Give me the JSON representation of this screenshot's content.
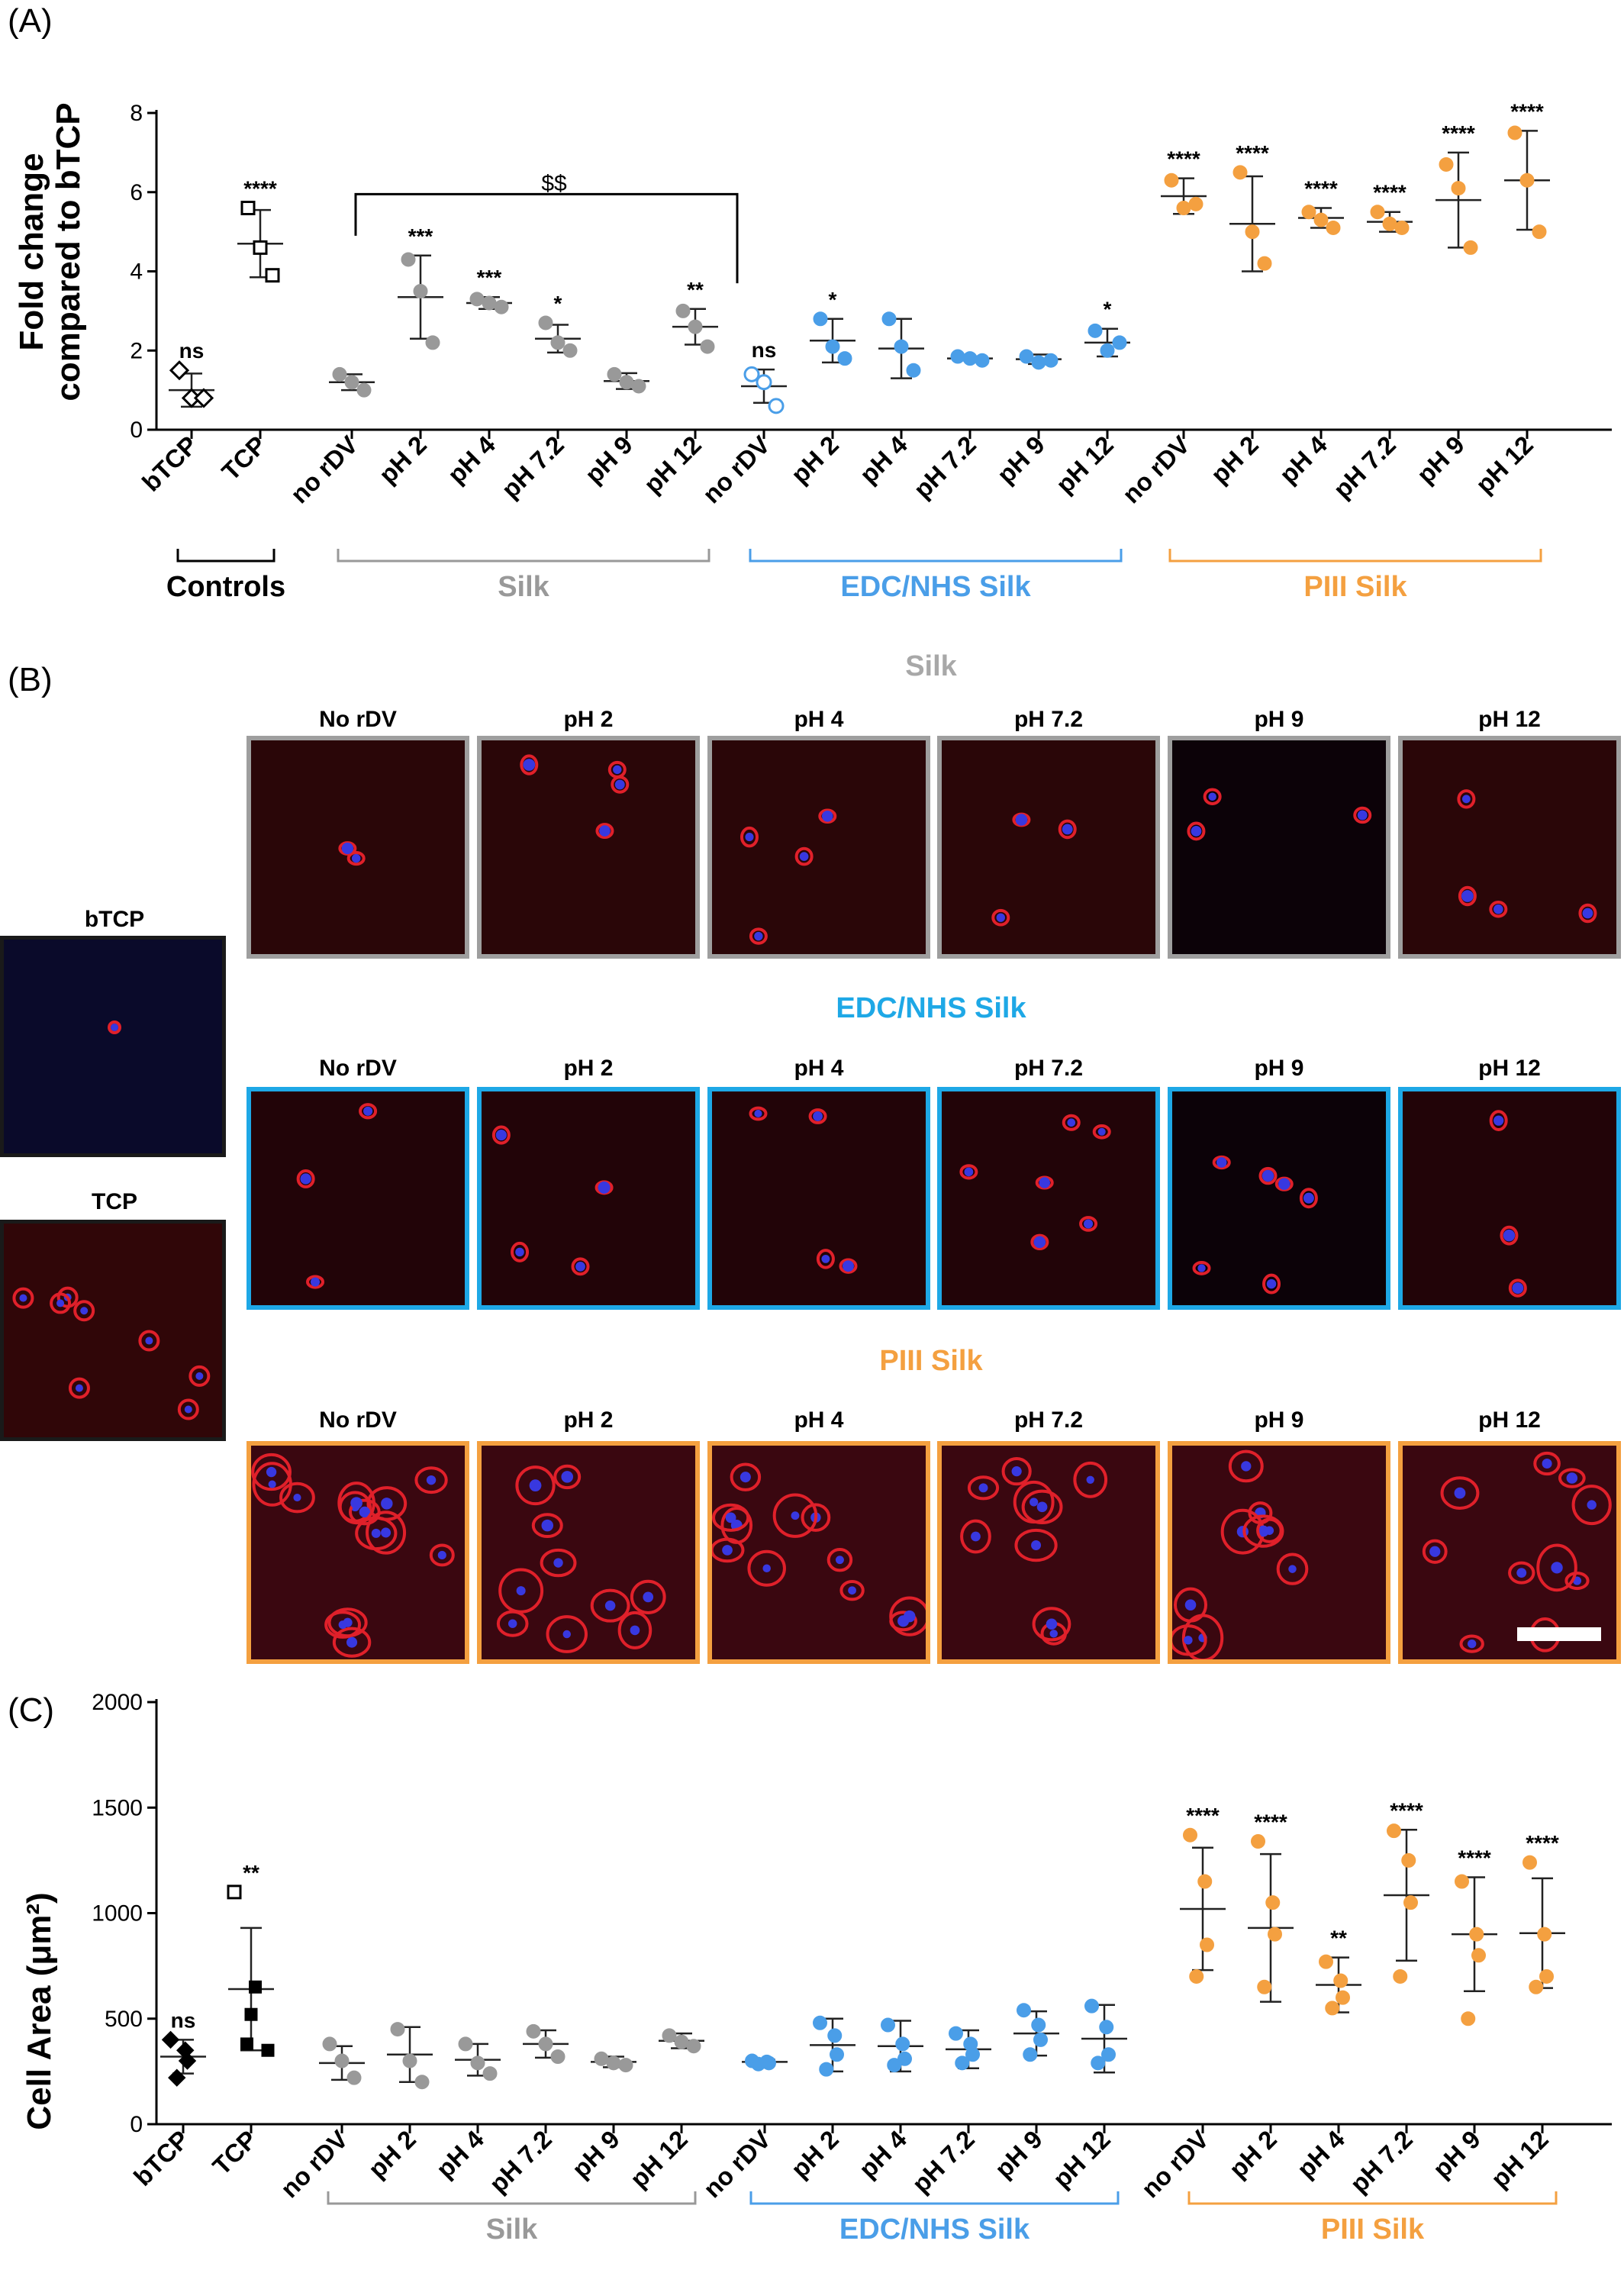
{
  "panel_a": {
    "letter": "(A)",
    "bracket_label": "$$",
    "chart_data": {
      "type": "scatter",
      "ylabel_line1": "Fold change",
      "ylabel_line2": "compared to bTCP",
      "ylim": [
        0,
        8
      ],
      "yticks": [
        0,
        2,
        4,
        6,
        8
      ],
      "categories": [
        "bTCP",
        "TCP",
        "no rDV",
        "pH 2",
        "pH 4",
        "pH 7.2",
        "pH 9",
        "pH 12",
        "no rDV",
        "pH 2",
        "pH 4",
        "pH 7.2",
        "pH 9",
        "pH 12",
        "no rDV",
        "pH 2",
        "pH 4",
        "pH 7.2",
        "pH 9",
        "pH 12"
      ],
      "groups": [
        {
          "name": "Controls",
          "color": "#000000",
          "members": [
            0,
            1
          ]
        },
        {
          "name": "Silk",
          "color": "#999999",
          "members": [
            2,
            3,
            4,
            5,
            6,
            7
          ]
        },
        {
          "name": "EDC/NHS Silk",
          "color": "#4a9ee8",
          "members": [
            8,
            9,
            10,
            11,
            12,
            13
          ]
        },
        {
          "name": "PIII Silk",
          "color": "#f4a040",
          "members": [
            14,
            15,
            16,
            17,
            18,
            19
          ]
        }
      ],
      "series": [
        {
          "category": "bTCP",
          "points": [
            1.5,
            0.8,
            0.8
          ],
          "mean": 1.0,
          "sd": 0.42,
          "sig": "ns",
          "marker": "diamond-open",
          "color": "#000000"
        },
        {
          "category": "TCP",
          "points": [
            5.6,
            4.6,
            3.9
          ],
          "mean": 4.7,
          "sd": 0.85,
          "sig": "****",
          "marker": "square-open",
          "color": "#000000"
        },
        {
          "category": "no rDV",
          "points": [
            1.4,
            1.2,
            1.0
          ],
          "mean": 1.2,
          "sd": 0.2,
          "sig": "",
          "marker": "circle",
          "color": "#999999"
        },
        {
          "category": "pH 2",
          "points": [
            4.3,
            3.5,
            2.2
          ],
          "mean": 3.35,
          "sd": 1.05,
          "sig": "***",
          "marker": "circle",
          "color": "#999999"
        },
        {
          "category": "pH 4",
          "points": [
            3.3,
            3.2,
            3.1
          ],
          "mean": 3.2,
          "sd": 0.15,
          "sig": "***",
          "marker": "circle",
          "color": "#999999"
        },
        {
          "category": "pH 7.2",
          "points": [
            2.7,
            2.2,
            2.0
          ],
          "mean": 2.3,
          "sd": 0.35,
          "sig": "*",
          "marker": "circle",
          "color": "#999999"
        },
        {
          "category": "pH 9",
          "points": [
            1.4,
            1.2,
            1.1
          ],
          "mean": 1.23,
          "sd": 0.2,
          "sig": "",
          "marker": "circle",
          "color": "#999999"
        },
        {
          "category": "pH 12",
          "points": [
            3.0,
            2.6,
            2.1
          ],
          "mean": 2.6,
          "sd": 0.45,
          "sig": "**",
          "marker": "circle",
          "color": "#999999"
        },
        {
          "category": "no rDV",
          "points": [
            1.4,
            1.2,
            0.6
          ],
          "mean": 1.1,
          "sd": 0.42,
          "sig": "ns",
          "marker": "circle-open",
          "color": "#4a9ee8"
        },
        {
          "category": "pH 2",
          "points": [
            2.8,
            2.1,
            1.8
          ],
          "mean": 2.25,
          "sd": 0.55,
          "sig": "*",
          "marker": "circle",
          "color": "#4a9ee8"
        },
        {
          "category": "pH 4",
          "points": [
            2.8,
            2.1,
            1.5
          ],
          "mean": 2.05,
          "sd": 0.75,
          "sig": "",
          "marker": "circle",
          "color": "#4a9ee8"
        },
        {
          "category": "pH 7.2",
          "points": [
            1.85,
            1.8,
            1.75
          ],
          "mean": 1.8,
          "sd": 0.05,
          "sig": "",
          "marker": "circle",
          "color": "#4a9ee8"
        },
        {
          "category": "pH 9",
          "points": [
            1.85,
            1.7,
            1.75
          ],
          "mean": 1.78,
          "sd": 0.12,
          "sig": "",
          "marker": "circle",
          "color": "#4a9ee8"
        },
        {
          "category": "pH 12",
          "points": [
            2.5,
            2.0,
            2.2
          ],
          "mean": 2.2,
          "sd": 0.35,
          "sig": "*",
          "marker": "circle",
          "color": "#4a9ee8"
        },
        {
          "category": "no rDV",
          "points": [
            6.3,
            5.6,
            5.7
          ],
          "mean": 5.9,
          "sd": 0.45,
          "sig": "****",
          "marker": "circle",
          "color": "#f4a040"
        },
        {
          "category": "pH 2",
          "points": [
            6.5,
            5.0,
            4.2
          ],
          "mean": 5.2,
          "sd": 1.2,
          "sig": "****",
          "marker": "circle",
          "color": "#f4a040"
        },
        {
          "category": "pH 4",
          "points": [
            5.5,
            5.3,
            5.1
          ],
          "mean": 5.35,
          "sd": 0.25,
          "sig": "****",
          "marker": "circle",
          "color": "#f4a040"
        },
        {
          "category": "pH 7.2",
          "points": [
            5.5,
            5.2,
            5.1
          ],
          "mean": 5.25,
          "sd": 0.25,
          "sig": "****",
          "marker": "circle",
          "color": "#f4a040"
        },
        {
          "category": "pH 9",
          "points": [
            6.7,
            6.1,
            4.6
          ],
          "mean": 5.8,
          "sd": 1.2,
          "sig": "****",
          "marker": "circle",
          "color": "#f4a040"
        },
        {
          "category": "pH 12",
          "points": [
            7.5,
            6.3,
            5.0
          ],
          "mean": 6.3,
          "sd": 1.25,
          "sig": "****",
          "marker": "circle",
          "color": "#f4a040"
        }
      ]
    }
  },
  "panel_b": {
    "letter": "(B)",
    "silk_title": "Silk",
    "edc_title": "EDC/NHS Silk",
    "piii_title": "PIII Silk",
    "col_labels": [
      "No rDV",
      "pH 2",
      "pH 4",
      "pH 7.2",
      "pH 9",
      "pH 12"
    ],
    "btcp_label": "bTCP",
    "tcp_label": "TCP",
    "colors": {
      "silk_border": "#9e9e9e",
      "edc_border": "#1ea8e6",
      "piii_border": "#f4a040",
      "control_border": "#1a1a1a",
      "cell_red": "#e0202a",
      "nucleus_blue": "#3838e0"
    }
  },
  "panel_c": {
    "letter": "(C)",
    "chart_data": {
      "type": "scatter",
      "ylabel": "Cell Area (μm²)",
      "ylim": [
        0,
        2000
      ],
      "yticks": [
        0,
        500,
        1000,
        1500,
        2000
      ],
      "categories": [
        "bTCP",
        "TCP",
        "no rDV",
        "pH 2",
        "pH 4",
        "pH 7.2",
        "pH 9",
        "pH 12",
        "no rDV",
        "pH 2",
        "pH 4",
        "pH 7.2",
        "pH 9",
        "pH 12",
        "no rDV",
        "pH 2",
        "pH 4",
        "pH 7.2",
        "pH 9",
        "pH 12"
      ],
      "groups": [
        {
          "name": "Silk",
          "color": "#999999",
          "members": [
            2,
            3,
            4,
            5,
            6,
            7
          ]
        },
        {
          "name": "EDC/NHS Silk",
          "color": "#4a9ee8",
          "members": [
            8,
            9,
            10,
            11,
            12,
            13
          ]
        },
        {
          "name": "PIII Silk",
          "color": "#f4a040",
          "members": [
            14,
            15,
            16,
            17,
            18,
            19
          ]
        }
      ],
      "series": [
        {
          "category": "bTCP",
          "points": [
            400,
            350,
            300,
            220
          ],
          "mean": 320,
          "sd": 80,
          "sig": "ns",
          "marker": "diamond-filled",
          "color": "#000000"
        },
        {
          "category": "TCP",
          "points": [
            1100,
            650,
            520,
            380,
            350
          ],
          "mean": 640,
          "sd": 290,
          "sig": "**",
          "marker": "square-mixed",
          "color": "#000000"
        },
        {
          "category": "no rDV",
          "points": [
            380,
            300,
            220
          ],
          "mean": 290,
          "sd": 80,
          "sig": "",
          "marker": "circle",
          "color": "#999999"
        },
        {
          "category": "pH 2",
          "points": [
            450,
            300,
            200
          ],
          "mean": 330,
          "sd": 130,
          "sig": "",
          "marker": "circle",
          "color": "#999999"
        },
        {
          "category": "pH 4",
          "points": [
            380,
            290,
            240
          ],
          "mean": 305,
          "sd": 75,
          "sig": "",
          "marker": "circle",
          "color": "#999999"
        },
        {
          "category": "pH 7.2",
          "points": [
            440,
            380,
            320
          ],
          "mean": 380,
          "sd": 65,
          "sig": "",
          "marker": "circle",
          "color": "#999999"
        },
        {
          "category": "pH 9",
          "points": [
            310,
            290,
            280
          ],
          "mean": 295,
          "sd": 25,
          "sig": "",
          "marker": "circle",
          "color": "#999999"
        },
        {
          "category": "pH 12",
          "points": [
            420,
            390,
            370
          ],
          "mean": 395,
          "sd": 35,
          "sig": "",
          "marker": "circle",
          "color": "#999999"
        },
        {
          "category": "no rDV",
          "points": [
            300,
            295,
            290,
            285
          ],
          "mean": 295,
          "sd": 10,
          "sig": "",
          "marker": "circle",
          "color": "#4a9ee8"
        },
        {
          "category": "pH 2",
          "points": [
            480,
            420,
            330,
            260
          ],
          "mean": 375,
          "sd": 125,
          "sig": "",
          "marker": "circle",
          "color": "#4a9ee8"
        },
        {
          "category": "pH 4",
          "points": [
            470,
            380,
            310,
            280
          ],
          "mean": 370,
          "sd": 120,
          "sig": "",
          "marker": "circle",
          "color": "#4a9ee8"
        },
        {
          "category": "pH 7.2",
          "points": [
            430,
            380,
            330,
            290
          ],
          "mean": 355,
          "sd": 90,
          "sig": "",
          "marker": "circle",
          "color": "#4a9ee8"
        },
        {
          "category": "pH 9",
          "points": [
            540,
            470,
            400,
            330
          ],
          "mean": 430,
          "sd": 105,
          "sig": "",
          "marker": "circle",
          "color": "#4a9ee8"
        },
        {
          "category": "pH 12",
          "points": [
            560,
            460,
            330,
            290
          ],
          "mean": 405,
          "sd": 160,
          "sig": "",
          "marker": "circle",
          "color": "#4a9ee8"
        },
        {
          "category": "no rDV",
          "points": [
            1370,
            1150,
            850,
            700
          ],
          "mean": 1020,
          "sd": 290,
          "sig": "****",
          "marker": "circle",
          "color": "#f4a040"
        },
        {
          "category": "pH 2",
          "points": [
            1340,
            1050,
            900,
            650
          ],
          "mean": 930,
          "sd": 350,
          "sig": "****",
          "marker": "circle",
          "color": "#f4a040"
        },
        {
          "category": "pH 4",
          "points": [
            770,
            680,
            600,
            550
          ],
          "mean": 660,
          "sd": 130,
          "sig": "**",
          "marker": "circle",
          "color": "#f4a040"
        },
        {
          "category": "pH 7.2",
          "points": [
            1390,
            1250,
            1050,
            700
          ],
          "mean": 1085,
          "sd": 310,
          "sig": "****",
          "marker": "circle",
          "color": "#f4a040"
        },
        {
          "category": "pH 9",
          "points": [
            1150,
            900,
            800,
            500
          ],
          "mean": 900,
          "sd": 270,
          "sig": "****",
          "marker": "circle",
          "color": "#f4a040"
        },
        {
          "category": "pH 12",
          "points": [
            1240,
            900,
            700,
            650
          ],
          "mean": 905,
          "sd": 260,
          "sig": "****",
          "marker": "circle",
          "color": "#f4a040"
        }
      ]
    }
  }
}
